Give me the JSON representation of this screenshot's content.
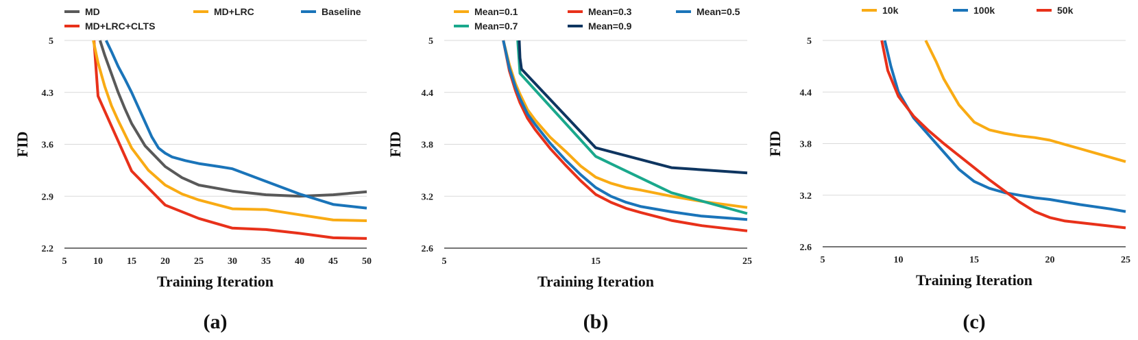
{
  "chart_data": [
    {
      "type": "line",
      "panel_label": "(a)",
      "xlabel": "Training Iteration",
      "ylabel": "FID",
      "xlim": [
        5,
        50
      ],
      "ylim": [
        2.2,
        5
      ],
      "xticks": [
        5,
        10,
        15,
        20,
        25,
        30,
        35,
        40,
        45,
        50
      ],
      "yticks": [
        2.2,
        2.9,
        3.6,
        4.3,
        5
      ],
      "ytick_labels": [
        "2.2",
        "2.9",
        "3.6",
        "4.3",
        "5"
      ],
      "grid": "horizontal",
      "legend": "top",
      "series": [
        {
          "name": "MD",
          "color": "#595959",
          "x": [
            10.3,
            11,
            12,
            13,
            14,
            15,
            17,
            20,
            22.5,
            25,
            30,
            35,
            40,
            45,
            50
          ],
          "y": [
            5.0,
            4.8,
            4.55,
            4.3,
            4.08,
            3.88,
            3.58,
            3.3,
            3.15,
            3.05,
            2.97,
            2.92,
            2.9,
            2.92,
            2.96
          ]
        },
        {
          "name": "MD+LRC+CLTS",
          "color": "#e8311a",
          "x": [
            9.4,
            10,
            15,
            20,
            25,
            30,
            35,
            40,
            45,
            50
          ],
          "y": [
            5.0,
            4.25,
            3.24,
            2.78,
            2.6,
            2.47,
            2.45,
            2.4,
            2.34,
            2.33
          ]
        },
        {
          "name": "MD+LRC",
          "color": "#f9ab14",
          "x": [
            9.3,
            10,
            11,
            12,
            13,
            15,
            17.5,
            20,
            22.5,
            25,
            30,
            35,
            40,
            45,
            50
          ],
          "y": [
            5.0,
            4.7,
            4.38,
            4.12,
            3.92,
            3.55,
            3.25,
            3.05,
            2.93,
            2.85,
            2.73,
            2.72,
            2.65,
            2.58,
            2.57
          ]
        },
        {
          "name": "Baseline",
          "color": "#1a74b9",
          "x": [
            11.2,
            12,
            13,
            14,
            15,
            16,
            17,
            18,
            19,
            20,
            21,
            23,
            25,
            28,
            30,
            35,
            40,
            45,
            50
          ],
          "y": [
            5.0,
            4.85,
            4.65,
            4.48,
            4.3,
            4.1,
            3.9,
            3.7,
            3.55,
            3.48,
            3.43,
            3.38,
            3.34,
            3.3,
            3.27,
            3.1,
            2.93,
            2.79,
            2.74
          ]
        }
      ]
    },
    {
      "type": "line",
      "panel_label": "(b)",
      "xlabel": "Training Iteration",
      "ylabel": "FID",
      "xlim": [
        5,
        25
      ],
      "ylim": [
        2.6,
        5
      ],
      "xticks": [
        5,
        15,
        25
      ],
      "yticks": [
        2.6,
        3.2,
        3.8,
        4.4,
        5
      ],
      "ytick_labels": [
        "2.6",
        "3.2",
        "3.8",
        "4.4",
        "5"
      ],
      "grid": "horizontal",
      "legend": "top",
      "series": [
        {
          "name": "Mean=0.1",
          "color": "#f9ab14",
          "x": [
            8.9,
            9.3,
            9.7,
            10,
            10.5,
            11,
            12,
            13,
            14,
            15,
            16,
            17,
            18,
            20,
            22,
            25
          ],
          "y": [
            5.0,
            4.72,
            4.5,
            4.38,
            4.2,
            4.08,
            3.88,
            3.72,
            3.55,
            3.42,
            3.35,
            3.3,
            3.27,
            3.2,
            3.14,
            3.07
          ]
        },
        {
          "name": "Mean=0.3",
          "color": "#e8311a",
          "x": [
            8.9,
            9.3,
            9.7,
            10,
            10.5,
            11,
            12,
            13,
            14,
            15,
            16,
            17,
            18,
            20,
            22,
            25
          ],
          "y": [
            5.0,
            4.65,
            4.42,
            4.28,
            4.1,
            3.97,
            3.75,
            3.56,
            3.38,
            3.22,
            3.13,
            3.06,
            3.01,
            2.92,
            2.86,
            2.8
          ]
        },
        {
          "name": "Mean=0.5",
          "color": "#1a74b9",
          "x": [
            8.9,
            9.3,
            9.7,
            10,
            10.5,
            11,
            12,
            13,
            14,
            15,
            16,
            17,
            18,
            20,
            22,
            25
          ],
          "y": [
            5.0,
            4.68,
            4.46,
            4.33,
            4.15,
            4.03,
            3.81,
            3.62,
            3.45,
            3.3,
            3.2,
            3.13,
            3.08,
            3.02,
            2.97,
            2.93
          ]
        },
        {
          "name": "Mean=0.7",
          "color": "#1aa88c",
          "x": [
            9.85,
            9.95,
            10,
            15,
            20,
            25
          ],
          "y": [
            5.0,
            4.75,
            4.62,
            3.66,
            3.24,
            3.0
          ]
        },
        {
          "name": "Mean=0.9",
          "color": "#0e3560",
          "x": [
            9.95,
            10,
            10.1,
            15,
            20,
            25
          ],
          "y": [
            5.0,
            4.8,
            4.67,
            3.76,
            3.53,
            3.47
          ]
        }
      ]
    },
    {
      "type": "line",
      "panel_label": "(c)",
      "xlabel": "Training Iteration",
      "ylabel": "FID",
      "xlim": [
        5,
        25
      ],
      "ylim": [
        2.6,
        5
      ],
      "xticks": [
        5,
        10,
        15,
        20,
        25
      ],
      "yticks": [
        2.6,
        3.2,
        3.8,
        4.4,
        5
      ],
      "ytick_labels": [
        "2.6",
        "3.2",
        "3.8",
        "4.4",
        "5"
      ],
      "grid": "horizontal",
      "legend": "top",
      "series": [
        {
          "name": "10k",
          "color": "#f9ab14",
          "x": [
            11.8,
            12.5,
            13,
            14,
            15,
            16,
            17,
            18,
            19,
            20,
            21,
            22,
            23,
            24,
            25
          ],
          "y": [
            5.0,
            4.75,
            4.55,
            4.25,
            4.05,
            3.96,
            3.92,
            3.89,
            3.87,
            3.84,
            3.79,
            3.74,
            3.69,
            3.64,
            3.59
          ]
        },
        {
          "name": "100k",
          "color": "#1a74b9",
          "x": [
            9.1,
            9.5,
            10,
            11,
            12,
            13,
            14,
            15,
            16,
            17,
            18,
            19,
            20,
            22,
            24,
            25
          ],
          "y": [
            5.0,
            4.7,
            4.4,
            4.1,
            3.9,
            3.7,
            3.5,
            3.36,
            3.28,
            3.23,
            3.2,
            3.17,
            3.15,
            3.09,
            3.04,
            3.01
          ]
        },
        {
          "name": "50k",
          "color": "#e8311a",
          "x": [
            8.9,
            9.3,
            10,
            11,
            12,
            13,
            14,
            15,
            16,
            17,
            18,
            19,
            20,
            21,
            22,
            23,
            24,
            25
          ],
          "y": [
            5.0,
            4.65,
            4.35,
            4.12,
            3.95,
            3.8,
            3.66,
            3.52,
            3.38,
            3.25,
            3.12,
            3.01,
            2.94,
            2.9,
            2.88,
            2.86,
            2.84,
            2.82
          ]
        }
      ]
    }
  ]
}
